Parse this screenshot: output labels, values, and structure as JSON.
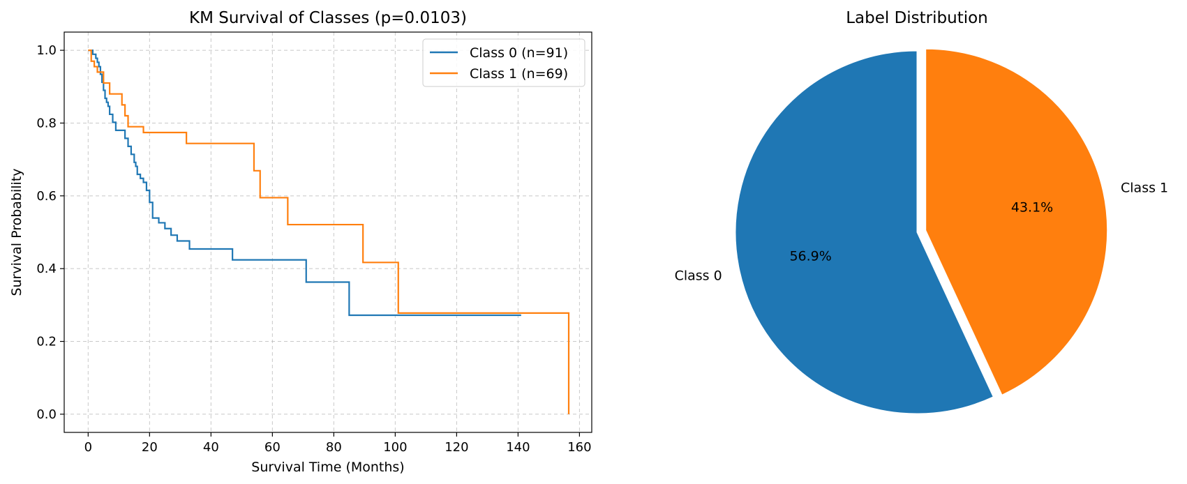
{
  "colors": {
    "class0": "#1f77b4",
    "class1": "#ff7f0e",
    "grid": "#b0b0b0"
  },
  "chart_data": [
    {
      "type": "line",
      "title": "KM Survival of Classes (p=0.0103)",
      "xlabel": "Survival Time (Months)",
      "ylabel": "Survival Probability",
      "xlim": [
        -7.8,
        164
      ],
      "ylim": [
        -0.05,
        1.05
      ],
      "xticks": [
        0,
        20,
        40,
        60,
        80,
        100,
        120,
        140,
        160
      ],
      "yticks": [
        0.0,
        0.2,
        0.4,
        0.6,
        0.8,
        1.0
      ],
      "grid": true,
      "legend_position": "top-right",
      "series": [
        {
          "name": "Class 0 (n=91)",
          "step": "post",
          "x": [
            0,
            1.5,
            2.5,
            3,
            3.5,
            4,
            4.5,
            5,
            5.5,
            6,
            6.5,
            7,
            8,
            9,
            12,
            13,
            14,
            15,
            15.5,
            16,
            17,
            18,
            19,
            20,
            21,
            23,
            25,
            27,
            29,
            33,
            47,
            71,
            85,
            141
          ],
          "y": [
            1.0,
            0.989,
            0.978,
            0.967,
            0.955,
            0.934,
            0.912,
            0.89,
            0.868,
            0.857,
            0.846,
            0.824,
            0.802,
            0.78,
            0.758,
            0.736,
            0.714,
            0.692,
            0.681,
            0.659,
            0.648,
            0.637,
            0.615,
            0.582,
            0.539,
            0.526,
            0.51,
            0.492,
            0.476,
            0.454,
            0.424,
            0.363,
            0.272,
            0.272
          ]
        },
        {
          "name": "Class 1 (n=69)",
          "step": "post",
          "x": [
            0,
            1,
            2,
            3,
            5,
            7,
            11,
            12,
            13,
            18,
            32,
            54,
            56,
            65,
            89.5,
            101,
            156.5
          ],
          "y": [
            1.0,
            0.97,
            0.955,
            0.94,
            0.91,
            0.88,
            0.85,
            0.82,
            0.79,
            0.774,
            0.744,
            0.669,
            0.595,
            0.521,
            0.417,
            0.278,
            0.0
          ]
        }
      ]
    },
    {
      "type": "pie",
      "title": "Label Distribution",
      "labels": [
        "Class 0",
        "Class 1"
      ],
      "values": [
        56.9,
        43.1
      ],
      "autopct": [
        "56.9%",
        "43.1%"
      ],
      "explode": [
        0,
        0.05
      ],
      "startangle": 90
    }
  ]
}
